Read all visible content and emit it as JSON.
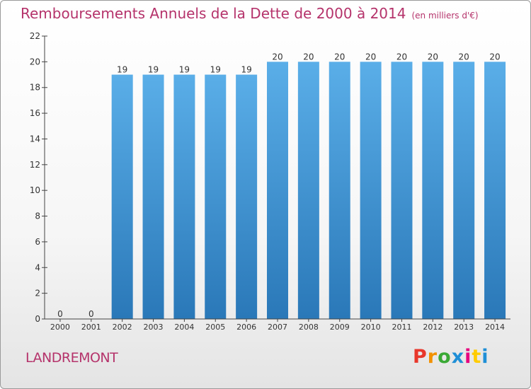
{
  "header": {
    "title": "Remboursements Annuels de la Dette de 2000 à 2014",
    "unit": "(en milliers d'€)"
  },
  "footer": {
    "commune": "LANDREMONT",
    "logo_text": "Proxiti"
  },
  "colors": {
    "bar_top": "#5aaee8",
    "bar_bottom": "#2a78b8",
    "title": "#b5336b"
  },
  "chart_data": {
    "type": "bar",
    "title": "Remboursements Annuels de la Dette de 2000 à 2014",
    "xlabel": "",
    "ylabel": "",
    "ylim": [
      0,
      22
    ],
    "yticks": [
      0,
      2,
      4,
      6,
      8,
      10,
      12,
      14,
      16,
      18,
      20,
      22
    ],
    "grid": false,
    "categories": [
      "2000",
      "2001",
      "2002",
      "2003",
      "2004",
      "2005",
      "2006",
      "2007",
      "2008",
      "2009",
      "2010",
      "2011",
      "2012",
      "2013",
      "2014"
    ],
    "values": [
      0,
      0,
      19,
      19,
      19,
      19,
      19,
      20,
      20,
      20,
      20,
      20,
      20,
      20,
      20
    ]
  }
}
